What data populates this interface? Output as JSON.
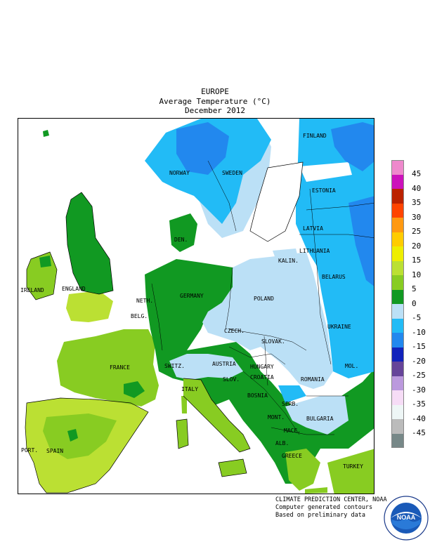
{
  "header": {
    "line1": "EUROPE",
    "line2": "Average Temperature (°C)",
    "line3": "December 2012"
  },
  "legend": {
    "entries": [
      {
        "label": "45",
        "color": "#ee88cc"
      },
      {
        "label": "40",
        "color": "#cc11bb"
      },
      {
        "label": "35",
        "color": "#bb2200"
      },
      {
        "label": "30",
        "color": "#ff4400"
      },
      {
        "label": "25",
        "color": "#ff9911"
      },
      {
        "label": "20",
        "color": "#ffcc00"
      },
      {
        "label": "15",
        "color": "#eeee00"
      },
      {
        "label": "10",
        "color": "#bbe033"
      },
      {
        "label": "5",
        "color": "#88cc22"
      },
      {
        "label": "0",
        "color": "#119922"
      },
      {
        "label": "-5",
        "color": "#bbe0f6"
      },
      {
        "label": "-10",
        "color": "#22bbf6"
      },
      {
        "label": "-15",
        "color": "#2288ee"
      },
      {
        "label": "-20",
        "color": "#1122bb"
      },
      {
        "label": "-25",
        "color": "#664499"
      },
      {
        "label": "-30",
        "color": "#bb99dd"
      },
      {
        "label": "-35",
        "color": "#f6dcf6"
      },
      {
        "label": "-40",
        "color": "#eef6f6"
      },
      {
        "label": "-45",
        "color": "#bbbbbb"
      },
      {
        "label": "",
        "color": "#778888"
      }
    ]
  },
  "countries": {
    "finland": "FINLAND",
    "norway": "NORWAY",
    "sweden": "SWEDEN",
    "estonia": "ESTONIA",
    "latvia": "LATVIA",
    "den": "DEN.",
    "lithuania": "LITHUANIA",
    "kalin": "KALIN.",
    "belarus": "BELARUS",
    "ireland": "IRELAND",
    "england": "ENGLAND",
    "neth": "NETH.",
    "germany": "GERMANY",
    "poland": "POLAND",
    "belg": "BELG.",
    "czech": "CZECH.",
    "ukraine": "UKRAINE",
    "slovak": "SLOVAK.",
    "france": "FRANCE",
    "switz": "SWITZ.",
    "austria": "AUSTRIA",
    "hungary": "HUNGARY",
    "mol": "MOL.",
    "slov": "SLOV.",
    "croatia": "CROATIA",
    "romania": "ROMANIA",
    "italy": "ITALY",
    "bosnia": "BOSNIA",
    "serb": "SERB.",
    "mont": "MONT.",
    "bulgaria": "BULGARIA",
    "mace": "MACE.",
    "alb": "ALB.",
    "port": "PORT.",
    "spain": "SPAIN",
    "greece": "GREECE",
    "turkey": "TURKEY"
  },
  "footer": {
    "line1": "CLIMATE PREDICTION CENTER, NOAA",
    "line2": "Computer generated contours",
    "line3": "Based on preliminary data"
  },
  "logo": {
    "text": "NOAA"
  }
}
